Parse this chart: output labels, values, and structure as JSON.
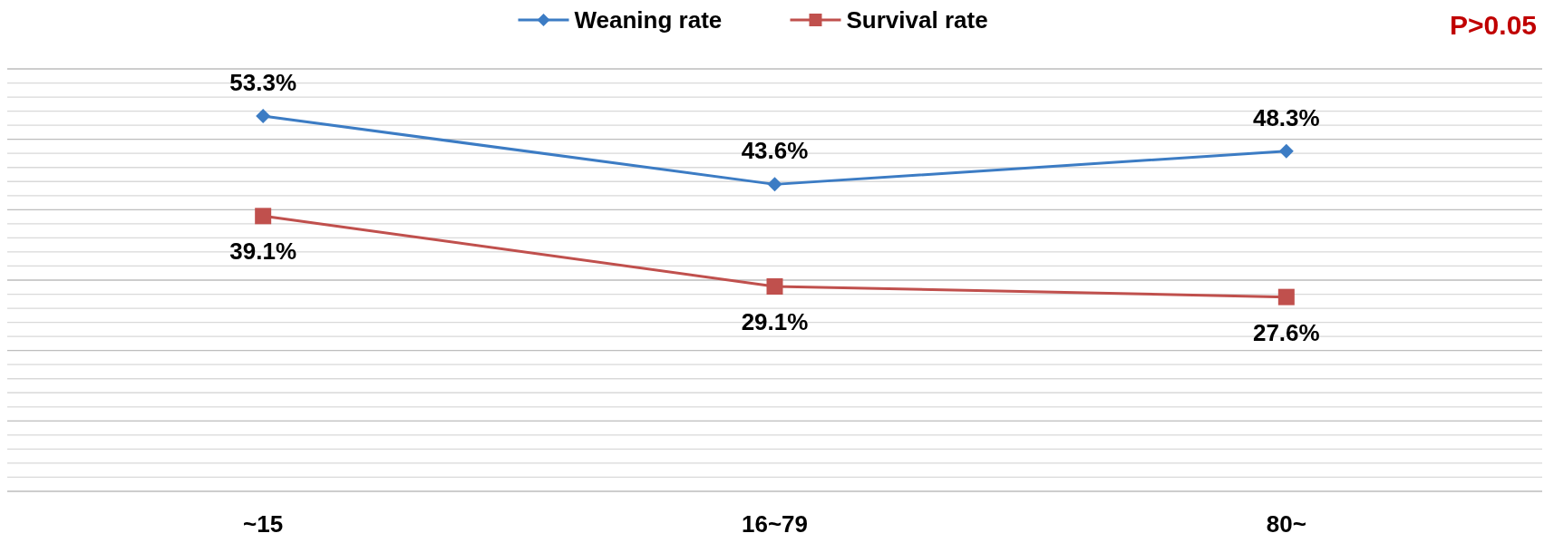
{
  "chart_data": {
    "type": "line",
    "categories": [
      "~15",
      "16~79",
      "80~"
    ],
    "series": [
      {
        "name": "Weaning rate",
        "color": "#3c7cc4",
        "marker": "diamond",
        "values": [
          53.3,
          43.6,
          48.3
        ],
        "value_labels": [
          "53.3%",
          "43.6%",
          "48.3%"
        ]
      },
      {
        "name": "Survival rate",
        "color": "#c0504d",
        "marker": "square",
        "values": [
          39.1,
          29.1,
          27.6
        ],
        "value_labels": [
          "39.1%",
          "29.1%",
          "27.6%"
        ]
      }
    ],
    "ylim": [
      0,
      60
    ],
    "yticks": [
      {
        "value": 0,
        "label": null
      },
      {
        "value": 2,
        "label": null
      },
      {
        "value": 4,
        "label": null
      },
      {
        "value": 6,
        "label": null
      },
      {
        "value": 8,
        "label": null
      },
      {
        "value": 10,
        "label": null
      },
      {
        "value": 12,
        "label": null
      },
      {
        "value": 14,
        "label": null
      },
      {
        "value": 16,
        "label": null
      },
      {
        "value": 18,
        "label": null
      },
      {
        "value": 20,
        "label": null
      },
      {
        "value": 22,
        "label": null
      },
      {
        "value": 24,
        "label": null
      },
      {
        "value": 26,
        "label": null
      },
      {
        "value": 28,
        "label": null
      },
      {
        "value": 30,
        "label": null
      },
      {
        "value": 32,
        "label": null
      },
      {
        "value": 34,
        "label": null
      },
      {
        "value": 36,
        "label": null
      },
      {
        "value": 38,
        "label": null
      },
      {
        "value": 40,
        "label": null
      },
      {
        "value": 42,
        "label": null
      },
      {
        "value": 44,
        "label": null
      },
      {
        "value": 46,
        "label": null
      },
      {
        "value": 48,
        "label": null
      },
      {
        "value": 50,
        "label": null
      },
      {
        "value": 52,
        "label": null
      },
      {
        "value": 54,
        "label": null
      },
      {
        "value": 56,
        "label": null
      },
      {
        "value": 58,
        "label": null
      },
      {
        "value": 60,
        "label": null
      }
    ],
    "tick_labels": "x",
    "grid": "y",
    "legend": "top",
    "annotations": [
      "P>0.05"
    ]
  }
}
